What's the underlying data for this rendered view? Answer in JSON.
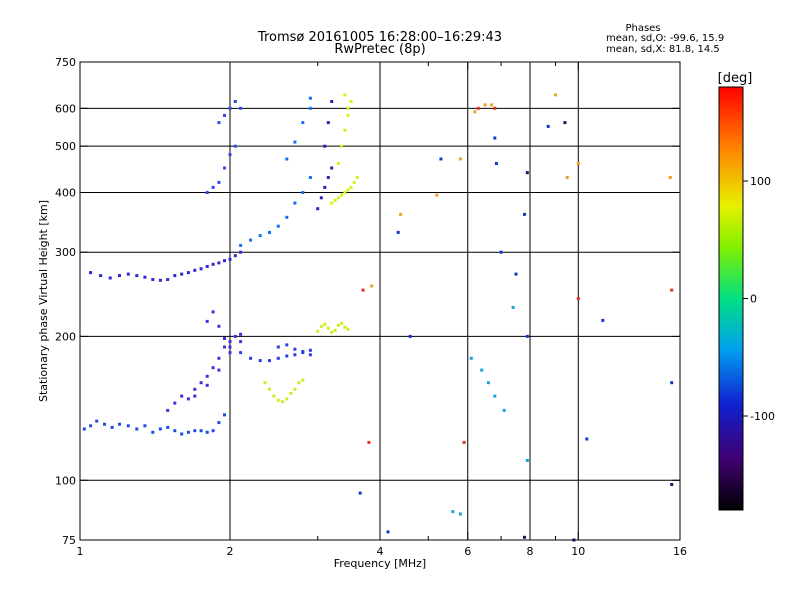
{
  "chart_data": {
    "type": "scatter",
    "title": "Tromsø 20161005 16:28:00–16:29:43",
    "subtitle": "RwPretec (8p)",
    "stats": {
      "heading": "Phases",
      "line_o": "mean, sd,O: -99.6, 15.9",
      "line_x": "mean, sd,X:  81.8, 14.5"
    },
    "xlabel": "Frequency [MHz]",
    "ylabel": "Stationary phase Virtual Height [km]",
    "x_scale": "log",
    "y_scale": "log",
    "xlim": [
      1,
      16
    ],
    "ylim": [
      75,
      750
    ],
    "x_ticks": [
      1,
      2,
      4,
      6,
      8,
      10,
      16
    ],
    "x_minor": [
      3,
      5,
      7,
      9
    ],
    "y_ticks": [
      75,
      100,
      200,
      300,
      400,
      500,
      600,
      750
    ],
    "grid_x": [
      2,
      4,
      6,
      8,
      10
    ],
    "grid_y": [
      100,
      200,
      300,
      400,
      500,
      600
    ],
    "colorbar": {
      "label": "[deg]",
      "range": [
        -180,
        180
      ],
      "ticks": [
        100,
        0,
        -100
      ]
    },
    "series": [
      {
        "color": "#1e4ce0",
        "x": [
          1.02,
          1.05,
          1.08,
          1.12,
          1.16,
          1.2,
          1.25,
          1.3,
          1.35,
          1.4,
          1.45,
          1.5,
          1.55,
          1.6,
          1.65,
          1.7,
          1.75,
          1.8,
          1.85,
          1.9,
          1.95
        ],
        "y": [
          128,
          130,
          133,
          131,
          129,
          131,
          130,
          128,
          130,
          126,
          128,
          129,
          127,
          125,
          126,
          127,
          127,
          126,
          127,
          132,
          137
        ]
      },
      {
        "color": "#4030d8",
        "x": [
          1.5,
          1.55,
          1.6,
          1.65,
          1.7,
          1.75,
          1.8,
          1.85,
          1.9,
          1.95,
          2.0,
          2.05,
          2.1,
          1.7,
          1.8,
          1.9,
          2.0,
          2.1,
          1.8,
          1.85,
          1.9,
          1.95,
          2.0
        ],
        "y": [
          140,
          145,
          150,
          148,
          155,
          160,
          165,
          172,
          180,
          190,
          195,
          200,
          202,
          150,
          158,
          170,
          185,
          195,
          215,
          225,
          210,
          198,
          190
        ]
      },
      {
        "color": "#2840e8",
        "x": [
          2.1,
          2.2,
          2.3,
          2.4,
          2.5,
          2.6,
          2.7,
          2.8,
          2.9,
          2.5,
          2.6,
          2.7,
          2.8,
          2.9
        ],
        "y": [
          185,
          180,
          178,
          178,
          180,
          182,
          183,
          185,
          187,
          190,
          192,
          188,
          186,
          183
        ]
      },
      {
        "color": "#c8f020",
        "x": [
          2.35,
          2.4,
          2.45,
          2.5,
          2.55,
          2.6,
          2.65,
          2.7,
          2.75,
          2.8
        ],
        "y": [
          160,
          155,
          150,
          147,
          146,
          148,
          152,
          155,
          160,
          162
        ]
      },
      {
        "color": "#c8f020",
        "x": [
          3.0,
          3.05,
          3.1,
          3.15,
          3.2,
          3.25,
          3.3,
          3.35,
          3.4,
          3.45
        ],
        "y": [
          205,
          210,
          212,
          208,
          204,
          206,
          211,
          213,
          209,
          207
        ]
      },
      {
        "color": "#3028d0",
        "x": [
          1.05,
          1.1,
          1.15,
          1.2,
          1.25,
          1.3,
          1.35,
          1.4,
          1.45,
          1.5,
          1.55,
          1.6,
          1.65,
          1.7,
          1.75,
          1.8,
          1.85,
          1.9,
          1.95,
          2.0,
          2.05,
          2.1
        ],
        "y": [
          272,
          268,
          265,
          268,
          270,
          268,
          266,
          263,
          262,
          263,
          268,
          270,
          272,
          275,
          277,
          280,
          283,
          285,
          288,
          290,
          295,
          300
        ]
      },
      {
        "color": "#3048e8",
        "x": [
          1.8,
          1.85,
          1.9,
          1.95,
          2.0,
          2.05,
          1.9,
          1.95,
          2.0,
          2.05,
          2.1
        ],
        "y": [
          400,
          410,
          420,
          450,
          480,
          500,
          560,
          580,
          600,
          620,
          600
        ]
      },
      {
        "color": "#1870f0",
        "x": [
          2.1,
          2.2,
          2.3,
          2.4,
          2.5,
          2.6,
          2.7,
          2.8,
          2.9,
          2.6,
          2.7,
          2.8,
          2.9,
          2.9
        ],
        "y": [
          310,
          318,
          325,
          330,
          340,
          355,
          380,
          400,
          430,
          470,
          510,
          560,
          600,
          630
        ]
      },
      {
        "color": "#4018b8",
        "x": [
          3.0,
          3.05,
          3.1,
          3.15,
          3.2,
          3.1,
          3.15,
          3.2
        ],
        "y": [
          370,
          390,
          410,
          430,
          450,
          500,
          560,
          620
        ]
      },
      {
        "color": "#d8f018",
        "x": [
          3.2,
          3.25,
          3.3,
          3.35,
          3.4,
          3.45,
          3.5,
          3.55,
          3.6,
          3.3,
          3.35,
          3.4,
          3.45,
          3.5,
          3.4,
          3.45
        ],
        "y": [
          380,
          385,
          390,
          395,
          400,
          405,
          410,
          420,
          430,
          460,
          500,
          540,
          580,
          620,
          640,
          600
        ]
      },
      {
        "color": "#f0a020",
        "x": [
          3.85,
          4.4,
          5.2,
          5.8,
          6.2,
          6.5,
          6.7,
          9.0,
          9.5,
          10.0,
          15.3
        ],
        "y": [
          255,
          360,
          395,
          470,
          590,
          610,
          610,
          640,
          430,
          460,
          430
        ]
      },
      {
        "color": "#e03020",
        "x": [
          3.7,
          3.8,
          5.9,
          6.3,
          6.8,
          10.0,
          15.4
        ],
        "y": [
          250,
          120,
          120,
          600,
          600,
          240,
          250
        ]
      },
      {
        "color": "#1038d0",
        "x": [
          3.65,
          4.15,
          4.35,
          4.6,
          5.3,
          6.8,
          6.85,
          7.0,
          7.5,
          7.8,
          7.9,
          8.7,
          10.4,
          11.2,
          15.4
        ],
        "y": [
          94,
          78,
          330,
          200,
          470,
          520,
          460,
          300,
          270,
          360,
          200,
          550,
          122,
          216,
          160
        ]
      },
      {
        "color": "#18a0e0",
        "x": [
          5.6,
          5.8,
          6.1,
          6.4,
          6.6,
          6.8,
          7.1,
          7.4,
          7.9
        ],
        "y": [
          86,
          85,
          180,
          170,
          160,
          150,
          140,
          230,
          110
        ]
      },
      {
        "color": "#181868",
        "x": [
          7.8,
          7.9,
          9.4,
          9.8,
          15.4
        ],
        "y": [
          76,
          440,
          560,
          75,
          98
        ]
      }
    ]
  }
}
